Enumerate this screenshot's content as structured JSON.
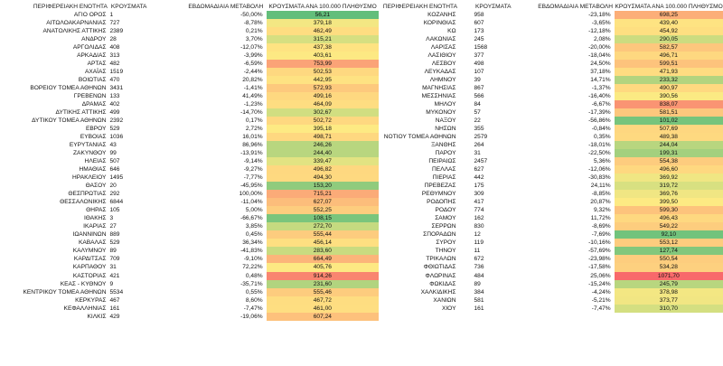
{
  "headers": {
    "region": "ΠΕΡΙΦΕΡΕΙΑΚΗ ΕΝΟΤΗΤΑ",
    "cases": "ΚΡΟΥΣΜΑΤΑ",
    "weekly_change": "ΕΒΔΟΜΑΔΙΑΙΑ ΜΕΤΑΒΟΛΗ",
    "per100k": "ΚΡΟΥΣΜΑΤΑ ΑΝΑ 100.000 ΠΛΗΘΥΣΜΟ"
  },
  "left_rows": [
    {
      "region": "ΑΓΙΟ ΟΡΟΣ",
      "cases": "1",
      "change": "-50,00%",
      "per100k": "56,21",
      "color": "#63be7b"
    },
    {
      "region": "ΑΙΤΩΛΟΑΚΑΡΝΑΝΙΑΣ",
      "cases": "727",
      "change": "-8,78%",
      "per100k": "379,18",
      "color": "#f3e783"
    },
    {
      "region": "ΑΝΑΤΟΛΙΚΗΣ ΑΤΤΙΚΗΣ",
      "cases": "2389",
      "change": "0,21%",
      "per100k": "462,49",
      "color": "#fedd81"
    },
    {
      "region": "ΑΝΔΡΟΥ",
      "cases": "28",
      "change": "3,70%",
      "per100k": "315,21",
      "color": "#d6df81"
    },
    {
      "region": "ΑΡΓΟΛΙΔΑΣ",
      "cases": "408",
      "change": "-12,07%",
      "per100k": "437,38",
      "color": "#fee382"
    },
    {
      "region": "ΑΡΚΑΔΙΑΣ",
      "cases": "313",
      "change": "-3,99%",
      "per100k": "403,61",
      "color": "#fde983"
    },
    {
      "region": "ΑΡΤΑΣ",
      "cases": "482",
      "change": "-6,59%",
      "per100k": "753,99",
      "color": "#fba377"
    },
    {
      "region": "ΑΧΑΪΑΣ",
      "cases": "1519",
      "change": "-2,44%",
      "per100k": "502,53",
      "color": "#fed880"
    },
    {
      "region": "ΒΟΙΩΤΙΑΣ",
      "cases": "470",
      "change": "20,82%",
      "per100k": "442,95",
      "color": "#fee282"
    },
    {
      "region": "ΒΟΡΕΙΟΥ ΤΟΜΕΑ ΑΘΗΝΩΝ",
      "cases": "3431",
      "change": "-1,41%",
      "per100k": "572,93",
      "color": "#fdc97d"
    },
    {
      "region": "ΓΡΕΒΕΝΩΝ",
      "cases": "133",
      "change": "41,49%",
      "per100k": "499,16",
      "color": "#fed880"
    },
    {
      "region": "ΔΡΑΜΑΣ",
      "cases": "402",
      "change": "-1,23%",
      "per100k": "464,09",
      "color": "#fedd81"
    },
    {
      "region": "ΔΥΤΙΚΗΣ ΑΤΤΙΚΗΣ",
      "cases": "499",
      "change": "-14,70%",
      "per100k": "302,67",
      "color": "#d1de81"
    },
    {
      "region": "ΔΥΤΙΚΟΥ ΤΟΜΕΑ ΑΘΗΝΩΝ",
      "cases": "2392",
      "change": "0,17%",
      "per100k": "502,72",
      "color": "#fed880"
    },
    {
      "region": "ΕΒΡΟΥ",
      "cases": "529",
      "change": "2,72%",
      "per100k": "395,18",
      "color": "#fdea83"
    },
    {
      "region": "ΕΥΒΟΙΑΣ",
      "cases": "1036",
      "change": "16,01%",
      "per100k": "498,71",
      "color": "#fed880"
    },
    {
      "region": "ΕΥΡΥΤΑΝΙΑΣ",
      "cases": "43",
      "change": "86,96%",
      "per100k": "246,26",
      "color": "#b8d67f"
    },
    {
      "region": "ΖΑΚΥΝΘΟΥ",
      "cases": "99",
      "change": "-13,91%",
      "per100k": "244,40",
      "color": "#b8d67f"
    },
    {
      "region": "ΗΛΕΙΑΣ",
      "cases": "507",
      "change": "-9,14%",
      "per100k": "339,47",
      "color": "#e2e382"
    },
    {
      "region": "ΗΜΑΘΙΑΣ",
      "cases": "646",
      "change": "-9,27%",
      "per100k": "496,82",
      "color": "#fed880"
    },
    {
      "region": "ΗΡΑΚΛΕΙΟΥ",
      "cases": "1495",
      "change": "-7,77%",
      "per100k": "494,30",
      "color": "#fed980"
    },
    {
      "region": "ΘΑΣΟΥ",
      "cases": "20",
      "change": "-45,95%",
      "per100k": "153,20",
      "color": "#8fcb7d"
    },
    {
      "region": "ΘΕΣΠΡΩΤΙΑΣ",
      "cases": "292",
      "change": "100,00%",
      "per100k": "715,21",
      "color": "#fbab78"
    },
    {
      "region": "ΘΕΣΣΑΛΟΝΙΚΗΣ",
      "cases": "6844",
      "change": "-11,04%",
      "per100k": "627,07",
      "color": "#fcbd7b"
    },
    {
      "region": "ΘΗΡΑΣ",
      "cases": "105",
      "change": "5,00%",
      "per100k": "552,25",
      "color": "#fdcd7e"
    },
    {
      "region": "ΙΘΑΚΗΣ",
      "cases": "3",
      "change": "-66,67%",
      "per100k": "108,15",
      "color": "#7ac57c"
    },
    {
      "region": "ΙΚΑΡΙΑΣ",
      "cases": "27",
      "change": "3,85%",
      "per100k": "272,70",
      "color": "#c5da80"
    },
    {
      "region": "ΙΩΑΝΝΙΝΩΝ",
      "cases": "889",
      "change": "0,45%",
      "per100k": "555,44",
      "color": "#fdcc7e"
    },
    {
      "region": "ΚΑΒΑΛΑΣ",
      "cases": "529",
      "change": "36,34%",
      "per100k": "456,14",
      "color": "#fedf81"
    },
    {
      "region": "ΚΑΛΥΜΝΟΥ",
      "cases": "89",
      "change": "-41,83%",
      "per100k": "283,60",
      "color": "#c9db80"
    },
    {
      "region": "ΚΑΡΔΙΤΣΑΣ",
      "cases": "709",
      "change": "-9,10%",
      "per100k": "664,49",
      "color": "#fcb57a"
    },
    {
      "region": "ΚΑΡΠΑΘΟΥ",
      "cases": "31",
      "change": "72,22%",
      "per100k": "405,76",
      "color": "#fde983"
    },
    {
      "region": "ΚΑΣΤΟΡΙΑΣ",
      "cases": "421",
      "change": "0,48%",
      "per100k": "914,26",
      "color": "#f98570"
    },
    {
      "region": "ΚΕΑΣ - ΚΥΘΝΟΥ",
      "cases": "9",
      "change": "-35,71%",
      "per100k": "231,60",
      "color": "#b1d47f"
    },
    {
      "region": "ΚΕΝΤΡΙΚΟΥ ΤΟΜΕΑ ΑΘΗΝΩΝ",
      "cases": "5534",
      "change": "0,55%",
      "per100k": "555,46",
      "color": "#fdcc7e"
    },
    {
      "region": "ΚΕΡΚΥΡΑΣ",
      "cases": "467",
      "change": "8,60%",
      "per100k": "467,72",
      "color": "#fedd81"
    },
    {
      "region": "ΚΕΦΑΛΛΗΝΙΑΣ",
      "cases": "161",
      "change": "-7,47%",
      "per100k": "461,00",
      "color": "#fede81"
    },
    {
      "region": "ΚΙΛΚΙΣ",
      "cases": "429",
      "change": "-19,06%",
      "per100k": "607,24",
      "color": "#fdc17c"
    }
  ],
  "right_rows": [
    {
      "region": "ΚΟΖΑΝΗΣ",
      "cases": "958",
      "change": "-23,18%",
      "per100k": "698,25",
      "color": "#fcae78"
    },
    {
      "region": "ΚΟΡΙΝΘΙΑΣ",
      "cases": "607",
      "change": "-3,65%",
      "per100k": "439,40",
      "color": "#fee382"
    },
    {
      "region": "ΚΩ",
      "cases": "173",
      "change": "-12,18%",
      "per100k": "454,92",
      "color": "#fedf81"
    },
    {
      "region": "ΛΑΚΩΝΙΑΣ",
      "cases": "245",
      "change": "2,08%",
      "per100k": "290,05",
      "color": "#ccdc80"
    },
    {
      "region": "ΛΑΡΙΣΑΣ",
      "cases": "1568",
      "change": "-20,00%",
      "per100k": "582,57",
      "color": "#fdc77d"
    },
    {
      "region": "ΛΑΣΙΘΙΟΥ",
      "cases": "377",
      "change": "-18,04%",
      "per100k": "496,71",
      "color": "#fed880"
    },
    {
      "region": "ΛΕΣΒΟΥ",
      "cases": "498",
      "change": "24,50%",
      "per100k": "599,51",
      "color": "#fdc37c"
    },
    {
      "region": "ΛΕΥΚΑΔΑΣ",
      "cases": "107",
      "change": "37,18%",
      "per100k": "471,93",
      "color": "#fedc81"
    },
    {
      "region": "ΛΗΜΝΟΥ",
      "cases": "39",
      "change": "14,71%",
      "per100k": "233,32",
      "color": "#b2d47f"
    },
    {
      "region": "ΜΑΓΝΗΣΙΑΣ",
      "cases": "867",
      "change": "-1,37%",
      "per100k": "490,97",
      "color": "#fed980"
    },
    {
      "region": "ΜΕΣΣΗΝΙΑΣ",
      "cases": "566",
      "change": "-16,40%",
      "per100k": "390,56",
      "color": "#fbea83"
    },
    {
      "region": "ΜΗΛΟΥ",
      "cases": "84",
      "change": "-6,67%",
      "per100k": "838,07",
      "color": "#fa9473"
    },
    {
      "region": "ΜΥΚΟΝΟΥ",
      "cases": "57",
      "change": "-17,39%",
      "per100k": "581,51",
      "color": "#fdc77d"
    },
    {
      "region": "ΝΑΞΟΥ",
      "cases": "22",
      "change": "-56,86%",
      "per100k": "101,02",
      "color": "#77c47c"
    },
    {
      "region": "ΝΗΣΩΝ",
      "cases": "355",
      "change": "-0,84%",
      "per100k": "507,69",
      "color": "#fed780"
    },
    {
      "region": "ΝΟΤΙΟΥ ΤΟΜΕΑ ΑΘΗΝΩΝ",
      "cases": "2579",
      "change": "0,35%",
      "per100k": "489,38",
      "color": "#fed980"
    },
    {
      "region": "ΞΑΝΘΗΣ",
      "cases": "264",
      "change": "-18,01%",
      "per100k": "244,04",
      "color": "#b8d67f"
    },
    {
      "region": "ΠΑΡΟΥ",
      "cases": "31",
      "change": "-22,50%",
      "per100k": "199,31",
      "color": "#a3d07e"
    },
    {
      "region": "ΠΕΙΡΑΙΩΣ",
      "cases": "2457",
      "change": "5,36%",
      "per100k": "554,38",
      "color": "#fdcc7e"
    },
    {
      "region": "ΠΕΛΛΑΣ",
      "cases": "627",
      "change": "-12,06%",
      "per100k": "496,60",
      "color": "#fed880"
    },
    {
      "region": "ΠΙΕΡΙΑΣ",
      "cases": "442",
      "change": "-30,83%",
      "per100k": "369,92",
      "color": "#f0e683"
    },
    {
      "region": "ΠΡΕΒΕΖΑΣ",
      "cases": "175",
      "change": "24,11%",
      "per100k": "319,72",
      "color": "#d8e081"
    },
    {
      "region": "ΡΕΘΥΜΝΟΥ",
      "cases": "309",
      "change": "-8,85%",
      "per100k": "369,76",
      "color": "#f0e683"
    },
    {
      "region": "ΡΟΔΟΠΗΣ",
      "cases": "417",
      "change": "20,87%",
      "per100k": "399,50",
      "color": "#fdea83"
    },
    {
      "region": "ΡΟΔΟΥ",
      "cases": "774",
      "change": "9,32%",
      "per100k": "599,30",
      "color": "#fdc37c"
    },
    {
      "region": "ΣΑΜΟΥ",
      "cases": "162",
      "change": "11,72%",
      "per100k": "496,43",
      "color": "#fed880"
    },
    {
      "region": "ΣΕΡΡΩΝ",
      "cases": "830",
      "change": "-8,69%",
      "per100k": "549,22",
      "color": "#fdcd7e"
    },
    {
      "region": "ΣΠΟΡΑΔΩΝ",
      "cases": "12",
      "change": "-7,69%",
      "per100k": "92,10",
      "color": "#72c37c"
    },
    {
      "region": "ΣΥΡΟΥ",
      "cases": "119",
      "change": "-10,16%",
      "per100k": "553,12",
      "color": "#fdcc7e"
    },
    {
      "region": "ΤΗΝΟΥ",
      "cases": "11",
      "change": "-57,69%",
      "per100k": "127,74",
      "color": "#82c77c"
    },
    {
      "region": "ΤΡΙΚΑΛΩΝ",
      "cases": "672",
      "change": "-23,98%",
      "per100k": "550,54",
      "color": "#fdcd7e"
    },
    {
      "region": "ΦΘΙΩΤΙΔΑΣ",
      "cases": "736",
      "change": "-17,58%",
      "per100k": "534,28",
      "color": "#fdd07f"
    },
    {
      "region": "ΦΛΩΡΙΝΑΣ",
      "cases": "484",
      "change": "25,06%",
      "per100k": "1071,70",
      "color": "#f8696b"
    },
    {
      "region": "ΦΩΚΙΔΑΣ",
      "cases": "89",
      "change": "-15,24%",
      "per100k": "245,79",
      "color": "#b8d67f"
    },
    {
      "region": "ΧΑΛΚΙΔΙΚΗΣ",
      "cases": "384",
      "change": "-4,24%",
      "per100k": "378,98",
      "color": "#f3e783"
    },
    {
      "region": "ΧΑΝΙΩΝ",
      "cases": "581",
      "change": "-5,21%",
      "per100k": "373,77",
      "color": "#f1e683"
    },
    {
      "region": "ΧΙΟΥ",
      "cases": "161",
      "change": "-7,47%",
      "per100k": "310,70",
      "color": "#d4df81"
    }
  ]
}
